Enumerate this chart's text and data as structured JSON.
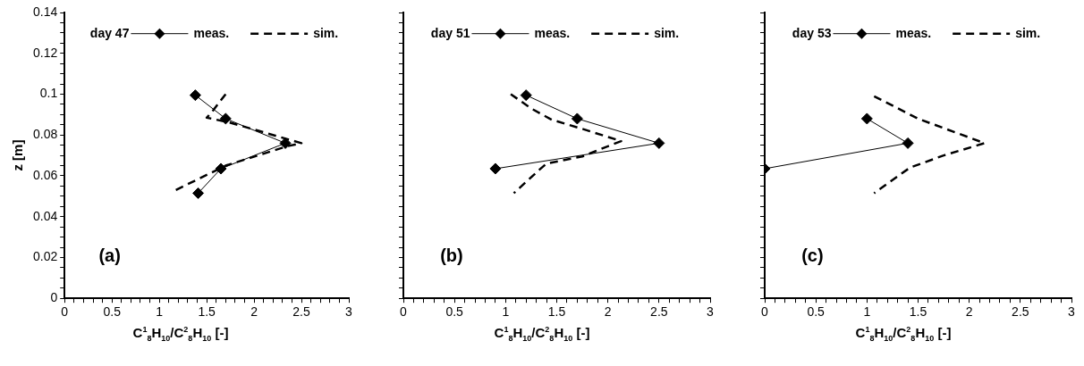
{
  "chart_data": [
    {
      "type": "line",
      "legend_title": "day 47",
      "xlabel": "C$^{1}$$_{8}$H$_{10}$/C$^{2}$$_{8}$H$_{10}$ [-]",
      "ylabel": "z [m]",
      "annotations": [
        "(a)"
      ],
      "legend": "top",
      "grid": false,
      "xlim": [
        0,
        3
      ],
      "ylim": [
        0,
        0.14
      ],
      "xticks": [
        0,
        {
          "value": 0.1,
          "label": null
        },
        {
          "value": 0.2,
          "label": null
        },
        {
          "value": 0.3,
          "label": null
        },
        {
          "value": 0.4,
          "label": null
        },
        0.5,
        {
          "value": 0.6,
          "label": null
        },
        {
          "value": 0.7,
          "label": null
        },
        {
          "value": 0.8,
          "label": null
        },
        {
          "value": 0.9,
          "label": null
        },
        1,
        {
          "value": 1.1,
          "label": null
        },
        {
          "value": 1.2,
          "label": null
        },
        {
          "value": 1.3,
          "label": null
        },
        {
          "value": 1.4,
          "label": null
        },
        1.5,
        {
          "value": 1.6,
          "label": null
        },
        {
          "value": 1.7,
          "label": null
        },
        {
          "value": 1.8,
          "label": null
        },
        {
          "value": 1.9,
          "label": null
        },
        2,
        {
          "value": 2.1,
          "label": null
        },
        {
          "value": 2.2,
          "label": null
        },
        {
          "value": 2.3,
          "label": null
        },
        {
          "value": 2.4,
          "label": null
        },
        2.5,
        {
          "value": 2.6,
          "label": null
        },
        {
          "value": 2.7,
          "label": null
        },
        {
          "value": 2.8,
          "label": null
        },
        {
          "value": 2.9,
          "label": null
        },
        3
      ],
      "yticks": [
        0,
        {
          "value": 0.005,
          "label": null
        },
        {
          "value": 0.01,
          "label": null
        },
        {
          "value": 0.015,
          "label": null
        },
        0.02,
        {
          "value": 0.025,
          "label": null
        },
        {
          "value": 0.03,
          "label": null
        },
        {
          "value": 0.035,
          "label": null
        },
        0.04,
        {
          "value": 0.045,
          "label": null
        },
        {
          "value": 0.05,
          "label": null
        },
        {
          "value": 0.055,
          "label": null
        },
        0.06,
        {
          "value": 0.065,
          "label": null
        },
        {
          "value": 0.07,
          "label": null
        },
        {
          "value": 0.075,
          "label": null
        },
        0.08,
        {
          "value": 0.085,
          "label": null
        },
        {
          "value": 0.09,
          "label": null
        },
        {
          "value": 0.095,
          "label": null
        },
        0.1,
        {
          "value": 0.105,
          "label": null
        },
        {
          "value": 0.11,
          "label": null
        },
        {
          "value": 0.115,
          "label": null
        },
        0.12,
        {
          "value": 0.125,
          "label": null
        },
        {
          "value": 0.13,
          "label": null
        },
        {
          "value": 0.135,
          "label": null
        },
        0.14
      ],
      "series": [
        {
          "name": "meas.",
          "color": "#000000",
          "marker": "diamond",
          "line_style": "solid",
          "x": [
            1.38,
            1.7,
            2.33,
            1.65,
            1.41
          ],
          "values": [
            0.0995,
            0.088,
            0.076,
            0.0635,
            0.0515
          ]
        },
        {
          "name": "sim.",
          "color": "#000000",
          "marker": "none",
          "line_style": "dashed",
          "x": [
            1.7,
            1.55,
            1.5,
            1.75,
            2.5,
            2.35,
            1.7,
            1.15
          ],
          "values": [
            0.1,
            0.091,
            0.0885,
            0.086,
            0.076,
            0.0745,
            0.065,
            0.0525
          ]
        }
      ]
    },
    {
      "type": "line",
      "legend_title": "day 51",
      "xlabel": "C$^{1}$$_{8}$H$_{10}$/C$^{2}$$_{8}$H$_{10}$ [-]",
      "annotations": [
        "(b)"
      ],
      "legend": "top",
      "grid": false,
      "tick_labels": "x",
      "xlim": [
        0,
        3
      ],
      "ylim": [
        0,
        0.14
      ],
      "xticks": [
        0,
        {
          "value": 0.1,
          "label": null
        },
        {
          "value": 0.2,
          "label": null
        },
        {
          "value": 0.3,
          "label": null
        },
        {
          "value": 0.4,
          "label": null
        },
        0.5,
        {
          "value": 0.6,
          "label": null
        },
        {
          "value": 0.7,
          "label": null
        },
        {
          "value": 0.8,
          "label": null
        },
        {
          "value": 0.9,
          "label": null
        },
        1,
        {
          "value": 1.1,
          "label": null
        },
        {
          "value": 1.2,
          "label": null
        },
        {
          "value": 1.3,
          "label": null
        },
        {
          "value": 1.4,
          "label": null
        },
        1.5,
        {
          "value": 1.6,
          "label": null
        },
        {
          "value": 1.7,
          "label": null
        },
        {
          "value": 1.8,
          "label": null
        },
        {
          "value": 1.9,
          "label": null
        },
        2,
        {
          "value": 2.1,
          "label": null
        },
        {
          "value": 2.2,
          "label": null
        },
        {
          "value": 2.3,
          "label": null
        },
        {
          "value": 2.4,
          "label": null
        },
        2.5,
        {
          "value": 2.6,
          "label": null
        },
        {
          "value": 2.7,
          "label": null
        },
        {
          "value": 2.8,
          "label": null
        },
        {
          "value": 2.9,
          "label": null
        },
        3
      ],
      "yticks": [
        0,
        {
          "value": 0.005,
          "label": null
        },
        {
          "value": 0.01,
          "label": null
        },
        {
          "value": 0.015,
          "label": null
        },
        0.02,
        {
          "value": 0.025,
          "label": null
        },
        {
          "value": 0.03,
          "label": null
        },
        {
          "value": 0.035,
          "label": null
        },
        0.04,
        {
          "value": 0.045,
          "label": null
        },
        {
          "value": 0.05,
          "label": null
        },
        {
          "value": 0.055,
          "label": null
        },
        0.06,
        {
          "value": 0.065,
          "label": null
        },
        {
          "value": 0.07,
          "label": null
        },
        {
          "value": 0.075,
          "label": null
        },
        0.08,
        {
          "value": 0.085,
          "label": null
        },
        {
          "value": 0.09,
          "label": null
        },
        {
          "value": 0.095,
          "label": null
        },
        0.1,
        {
          "value": 0.105,
          "label": null
        },
        {
          "value": 0.11,
          "label": null
        },
        {
          "value": 0.115,
          "label": null
        },
        0.12,
        {
          "value": 0.125,
          "label": null
        },
        {
          "value": 0.13,
          "label": null
        },
        {
          "value": 0.135,
          "label": null
        },
        0.14
      ],
      "series": [
        {
          "name": "meas.",
          "color": "#000000",
          "marker": "diamond",
          "line_style": "solid",
          "x": [
            1.2,
            1.7,
            2.5,
            0.9
          ],
          "values": [
            0.0995,
            0.088,
            0.076,
            0.0635
          ]
        },
        {
          "name": "sim.",
          "color": "#000000",
          "marker": "none",
          "line_style": "dashed",
          "x": [
            1.05,
            1.25,
            1.45,
            1.75,
            2.13,
            2.0,
            1.75,
            1.4,
            1.33,
            1.08
          ],
          "values": [
            0.1,
            0.093,
            0.0875,
            0.083,
            0.077,
            0.0745,
            0.0695,
            0.066,
            0.063,
            0.0515
          ]
        }
      ]
    },
    {
      "type": "line",
      "legend_title": "day 53",
      "xlabel": "C$^{1}$$_{8}$H$_{10}$/C$^{2}$$_{8}$H$_{10}$ [-]",
      "annotations": [
        "(c)"
      ],
      "legend": "top",
      "grid": false,
      "tick_labels": "x",
      "xlim": [
        0,
        3
      ],
      "ylim": [
        0,
        0.14
      ],
      "xticks": [
        0,
        {
          "value": 0.1,
          "label": null
        },
        {
          "value": 0.2,
          "label": null
        },
        {
          "value": 0.3,
          "label": null
        },
        {
          "value": 0.4,
          "label": null
        },
        0.5,
        {
          "value": 0.6,
          "label": null
        },
        {
          "value": 0.7,
          "label": null
        },
        {
          "value": 0.8,
          "label": null
        },
        {
          "value": 0.9,
          "label": null
        },
        1,
        {
          "value": 1.1,
          "label": null
        },
        {
          "value": 1.2,
          "label": null
        },
        {
          "value": 1.3,
          "label": null
        },
        {
          "value": 1.4,
          "label": null
        },
        1.5,
        {
          "value": 1.6,
          "label": null
        },
        {
          "value": 1.7,
          "label": null
        },
        {
          "value": 1.8,
          "label": null
        },
        {
          "value": 1.9,
          "label": null
        },
        2,
        {
          "value": 2.1,
          "label": null
        },
        {
          "value": 2.2,
          "label": null
        },
        {
          "value": 2.3,
          "label": null
        },
        {
          "value": 2.4,
          "label": null
        },
        2.5,
        {
          "value": 2.6,
          "label": null
        },
        {
          "value": 2.7,
          "label": null
        },
        {
          "value": 2.8,
          "label": null
        },
        {
          "value": 2.9,
          "label": null
        },
        3
      ],
      "yticks": [
        0,
        {
          "value": 0.005,
          "label": null
        },
        {
          "value": 0.01,
          "label": null
        },
        {
          "value": 0.015,
          "label": null
        },
        0.02,
        {
          "value": 0.025,
          "label": null
        },
        {
          "value": 0.03,
          "label": null
        },
        {
          "value": 0.035,
          "label": null
        },
        0.04,
        {
          "value": 0.045,
          "label": null
        },
        {
          "value": 0.05,
          "label": null
        },
        {
          "value": 0.055,
          "label": null
        },
        0.06,
        {
          "value": 0.065,
          "label": null
        },
        {
          "value": 0.07,
          "label": null
        },
        {
          "value": 0.075,
          "label": null
        },
        0.08,
        {
          "value": 0.085,
          "label": null
        },
        {
          "value": 0.09,
          "label": null
        },
        {
          "value": 0.095,
          "label": null
        },
        0.1,
        {
          "value": 0.105,
          "label": null
        },
        {
          "value": 0.11,
          "label": null
        },
        {
          "value": 0.115,
          "label": null
        },
        0.12,
        {
          "value": 0.125,
          "label": null
        },
        {
          "value": 0.13,
          "label": null
        },
        {
          "value": 0.135,
          "label": null
        },
        0.14
      ],
      "series": [
        {
          "name": "meas.",
          "color": "#000000",
          "marker": "diamond",
          "line_style": "solid",
          "x": [
            1.0,
            1.4,
            0
          ],
          "values": [
            0.088,
            0.076,
            0.0635
          ]
        },
        {
          "name": "sim.",
          "color": "#000000",
          "marker": "none",
          "line_style": "dashed",
          "x": [
            1.07,
            1.5,
            2.15,
            1.75,
            1.42,
            1.07
          ],
          "values": [
            0.099,
            0.088,
            0.076,
            0.07,
            0.064,
            0.0515
          ]
        }
      ]
    }
  ]
}
